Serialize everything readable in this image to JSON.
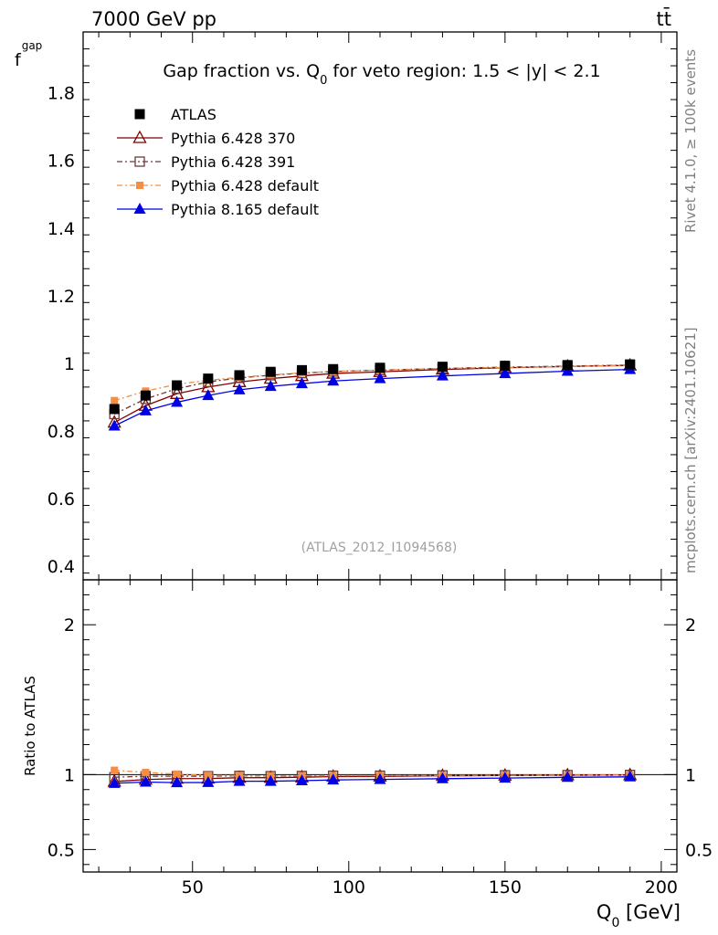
{
  "header": {
    "left": "7000 GeV pp",
    "right": "tt̄"
  },
  "side_labels": {
    "rivet": "Rivet 4.1.0, ≥ 100k events",
    "mcplots": "mcplots.cern.ch [arXiv:2401.10621]"
  },
  "watermark": "(ATLAS_2012_I1094568)",
  "chart_data": {
    "type": "line",
    "title_parts": {
      "prefix": "Gap fraction vs. Q",
      "sub": "0",
      "suffix": " for veto region: 1.5 < |y| < 2.1"
    },
    "ylabel_main": {
      "base": "f",
      "sub": "gap"
    },
    "ylabel_ratio": "Ratio to ATLAS",
    "xlabel": {
      "base": "Q",
      "sub": "0",
      "unit": " [GeV]"
    },
    "xlim": [
      15,
      205
    ],
    "ylim_main": [
      0.36,
      1.98
    ],
    "ylim_ratio": [
      0.35,
      2.3
    ],
    "x_ticks": [
      50,
      100,
      150,
      200
    ],
    "y_ticks_main": [
      "0.4",
      "0.6",
      "0.8",
      "1",
      "1.2",
      "1.4",
      "1.6",
      "1.8"
    ],
    "y_ticks_ratio": [
      "0.5",
      "1",
      "2"
    ],
    "x": [
      25,
      35,
      45,
      55,
      65,
      75,
      85,
      95,
      110,
      130,
      150,
      170,
      190
    ],
    "series": [
      {
        "name": "ATLAS",
        "color": "#000000",
        "marker": "square-filled",
        "values": [
          0.865,
          0.905,
          0.935,
          0.955,
          0.965,
          0.975,
          0.98,
          0.983,
          0.987,
          0.99,
          0.993,
          0.995,
          0.997
        ],
        "errors": [
          0.014,
          0.012,
          0.01,
          0.009,
          0.008,
          0.008,
          0.007,
          0.007,
          0.006,
          0.005,
          0.005,
          0.004,
          0.004
        ]
      },
      {
        "name": "Pythia 6.428 370",
        "color": "#800000",
        "marker": "triangle-open",
        "dash": "",
        "values": [
          0.825,
          0.875,
          0.91,
          0.93,
          0.945,
          0.955,
          0.963,
          0.97,
          0.975,
          0.982,
          0.987,
          0.991,
          0.994
        ]
      },
      {
        "name": "Pythia 6.428 391",
        "color": "#6b3a3a",
        "marker": "square-open",
        "dash": "6,3,2,3",
        "values": [
          0.85,
          0.895,
          0.925,
          0.945,
          0.957,
          0.965,
          0.971,
          0.976,
          0.98,
          0.985,
          0.989,
          0.992,
          0.995
        ]
      },
      {
        "name": "Pythia 6.428 default",
        "color": "#f58d42",
        "marker": "square-filled-small",
        "dash": "6,3,2,3",
        "values": [
          0.89,
          0.918,
          0.938,
          0.95,
          0.959,
          0.966,
          0.972,
          0.976,
          0.98,
          0.985,
          0.988,
          0.991,
          0.994
        ]
      },
      {
        "name": "Pythia 8.165 default",
        "color": "#0000e6",
        "marker": "triangle-filled",
        "dash": "",
        "values": [
          0.815,
          0.86,
          0.885,
          0.905,
          0.922,
          0.932,
          0.94,
          0.948,
          0.955,
          0.963,
          0.97,
          0.977,
          0.982
        ]
      }
    ]
  }
}
